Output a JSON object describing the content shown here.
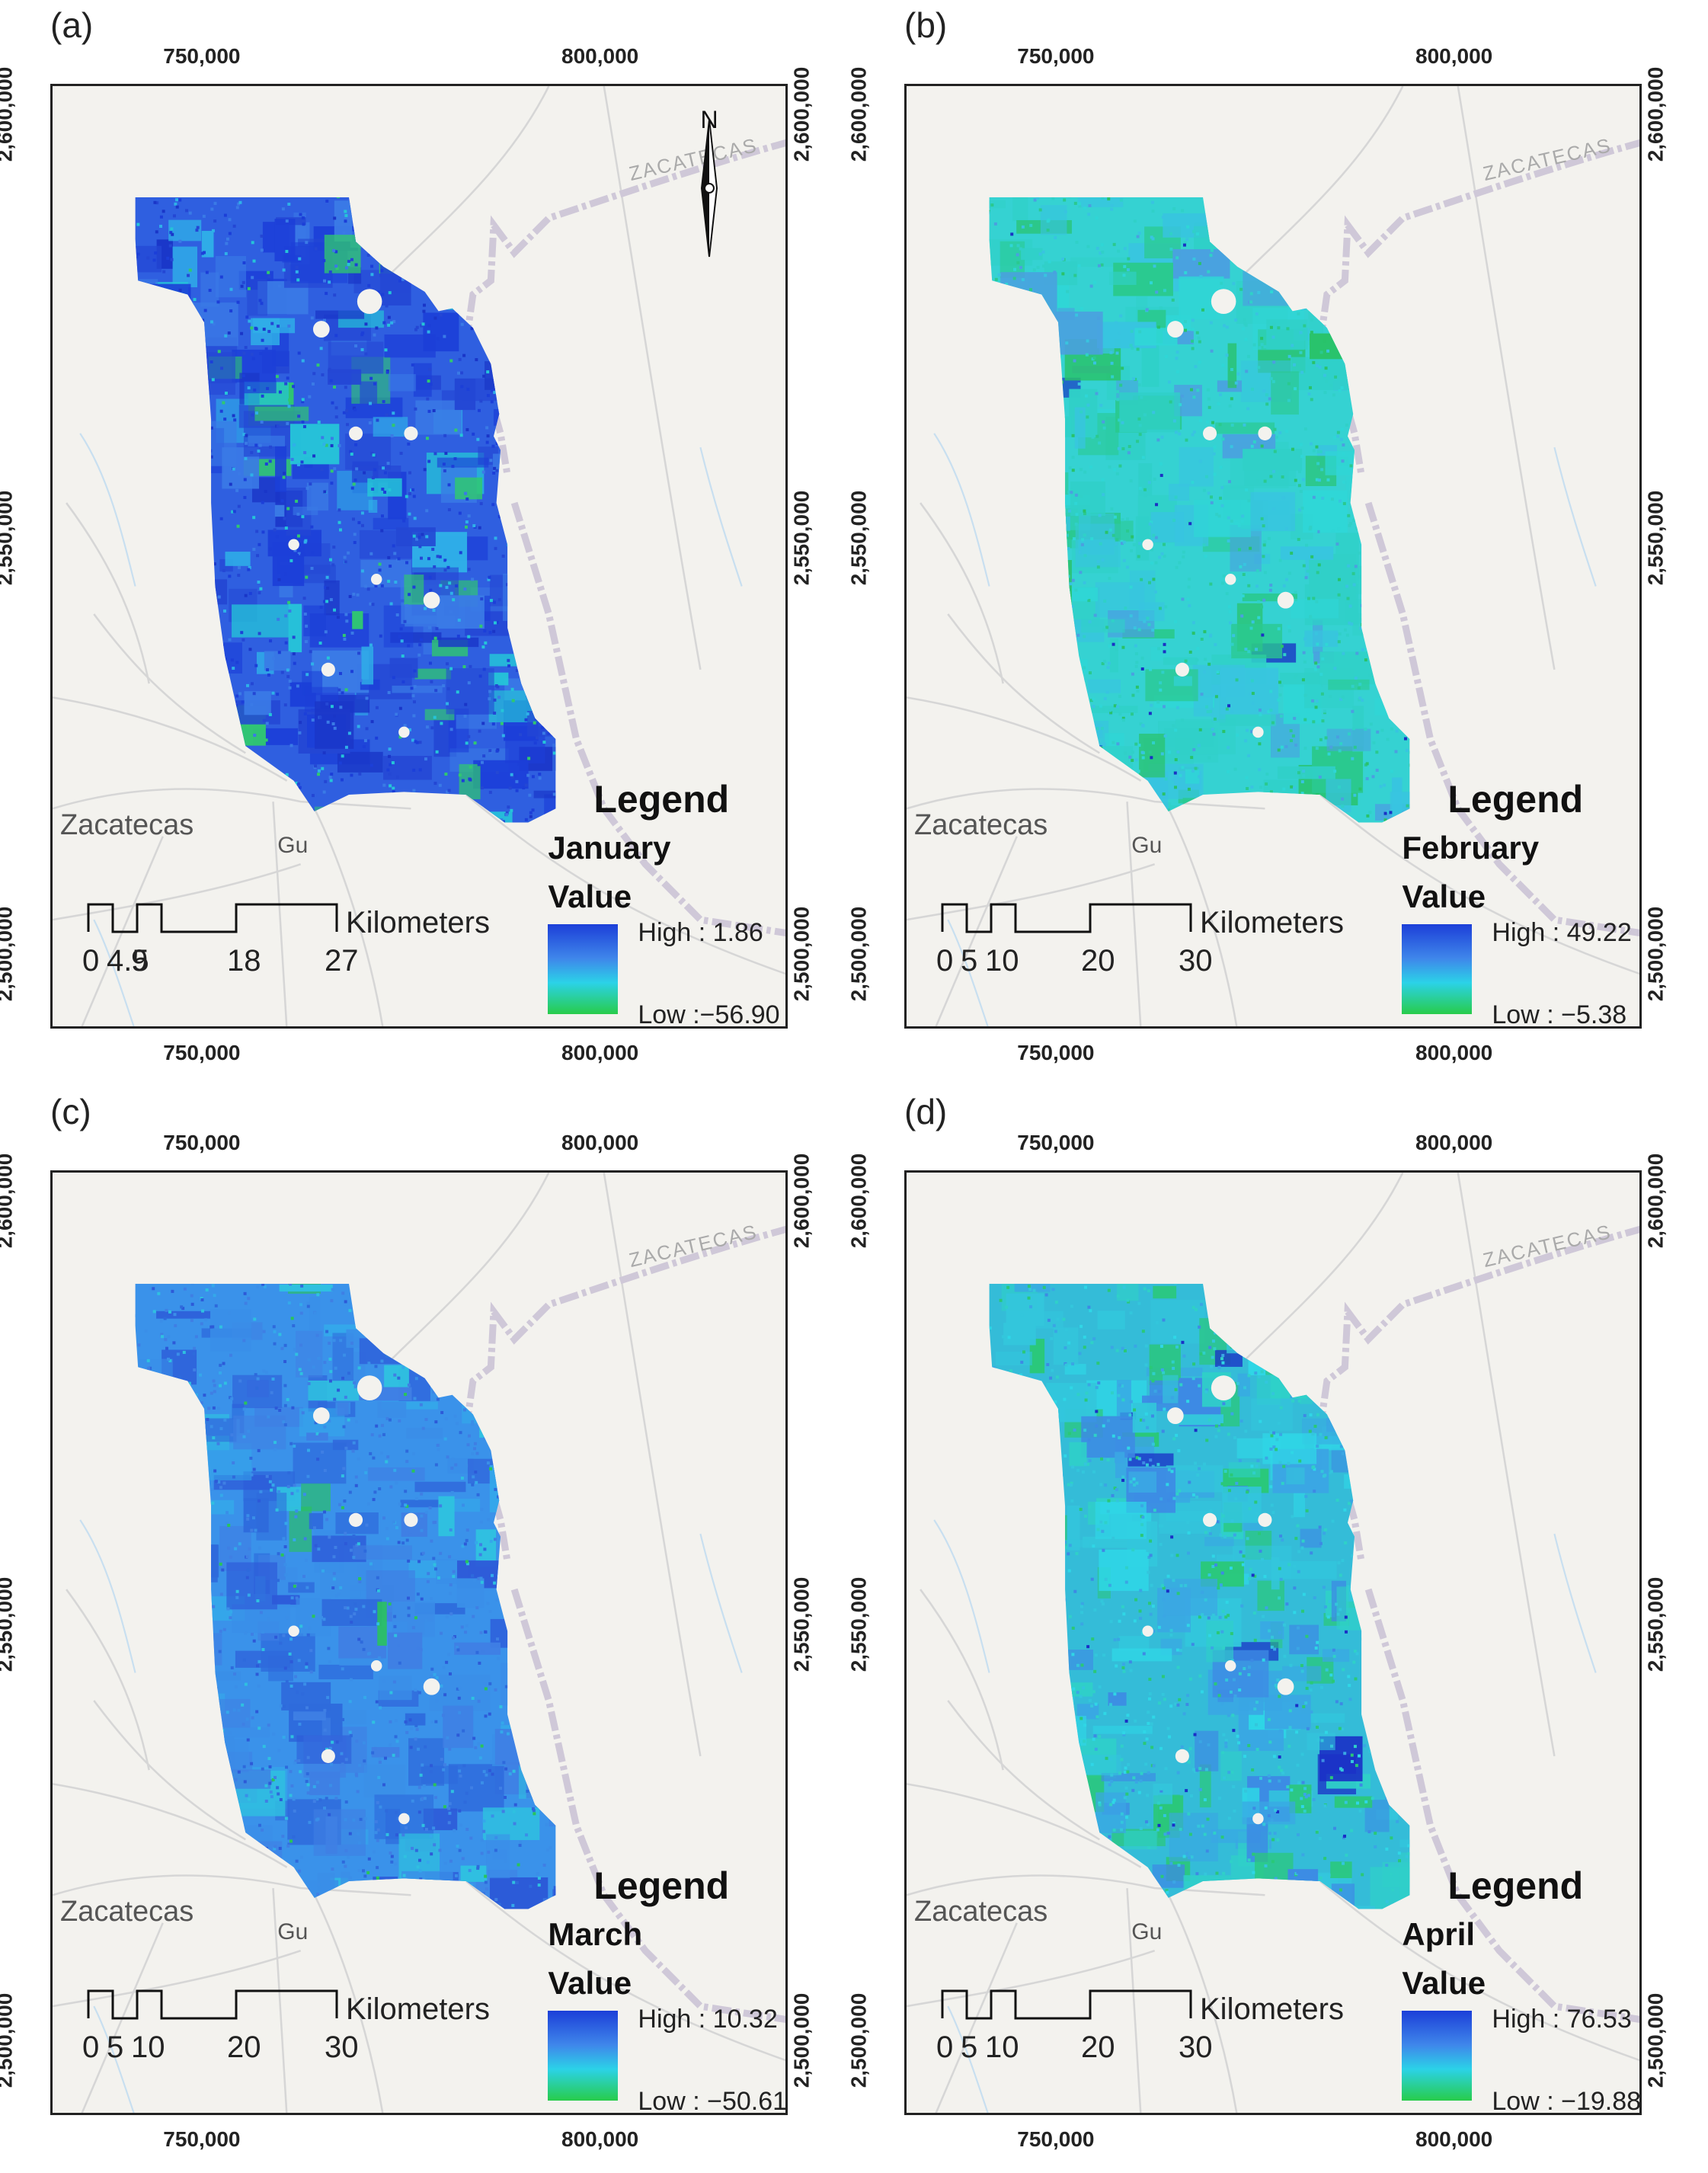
{
  "panels": [
    {
      "label": "(a)",
      "month": "January",
      "legend_title": "Legend",
      "value_label": "Value",
      "high": "High : 1.86",
      "low": "Low :−56.90",
      "scale_unit": "Kilometers",
      "scale_ticks": [
        "0",
        "4.5",
        "9",
        "18",
        "27"
      ],
      "palette": "dark",
      "north_arrow": true,
      "north_label": "N"
    },
    {
      "label": "(b)",
      "month": "February",
      "legend_title": "Legend",
      "value_label": "Value",
      "high": "High : 49.22",
      "low": "Low : −5.38",
      "scale_unit": "Kilometers",
      "scale_ticks": [
        "0",
        "5",
        "10",
        "20",
        "30"
      ],
      "palette": "light",
      "north_arrow": false
    },
    {
      "label": "(c)",
      "month": "March",
      "legend_title": "Legend",
      "value_label": "Value",
      "high": "High : 10.32",
      "low": "Low : −50.61",
      "scale_unit": "Kilometers",
      "scale_ticks": [
        "0",
        "5",
        "10",
        "20",
        "30"
      ],
      "palette": "medium",
      "north_arrow": false
    },
    {
      "label": "(d)",
      "month": "April",
      "legend_title": "Legend",
      "value_label": "Value",
      "high": "High : 76.53",
      "low": "Low : −19.88",
      "scale_unit": "Kilometers",
      "scale_ticks": [
        "0",
        "5",
        "10",
        "20",
        "30"
      ],
      "palette": "mixed",
      "north_arrow": false
    }
  ],
  "axes": {
    "x_ticks": [
      "750,000",
      "800,000"
    ],
    "y_ticks": [
      "2,600,000",
      "2,550,000",
      "2,500,000"
    ]
  },
  "places": {
    "city": "Zacatecas",
    "town": "Gu",
    "state": "ZACATECAS"
  },
  "colors": {
    "ramp_high": "#1c3fd8",
    "ramp_mid": "#2bd2e8",
    "ramp_low": "#28cc4a",
    "basemap": "#f3f2ee",
    "boundary": "#cfc8d8",
    "roads": "#d6d6d6"
  }
}
